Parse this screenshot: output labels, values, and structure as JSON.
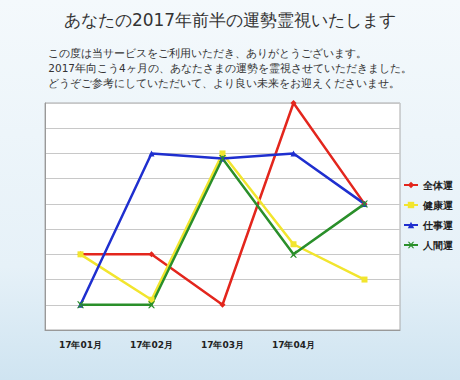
{
  "chart_data": {
    "type": "line",
    "title": "あなたの2017年前半の運勢霊視いたします",
    "subtitle": [
      "この度は当サービスをご利用いただき、ありがとうございます。",
      "2017年向こう4ヶ月の、あなたさまの運勢を霊視させていただきました。",
      "どうぞご参考にしていただいて、より良い未来をお迎えくださいませ。"
    ],
    "categories": [
      "17年01月",
      "17年02月",
      "17年03月",
      "17年04月",
      null
    ],
    "series": [
      {
        "name": "全体運",
        "color": "#e3261d",
        "marker": "diamond",
        "values": [
          3,
          3,
          1,
          9,
          5
        ]
      },
      {
        "name": "健康運",
        "color": "#f2e52e",
        "marker": "square",
        "values": [
          3,
          1.2,
          7,
          3.4,
          2
        ]
      },
      {
        "name": "仕事運",
        "color": "#1f2fcf",
        "marker": "triangle",
        "values": [
          1,
          7,
          6.8,
          7,
          5
        ]
      },
      {
        "name": "人間運",
        "color": "#2a8f2a",
        "marker": "x",
        "values": [
          1,
          1,
          6.8,
          3,
          5
        ]
      }
    ],
    "ylim": [
      0,
      9
    ],
    "yticks": [
      0,
      1,
      2,
      3,
      4,
      5,
      6,
      7,
      8,
      9
    ],
    "grid": true,
    "legend": "right",
    "tick_labels": "x"
  }
}
